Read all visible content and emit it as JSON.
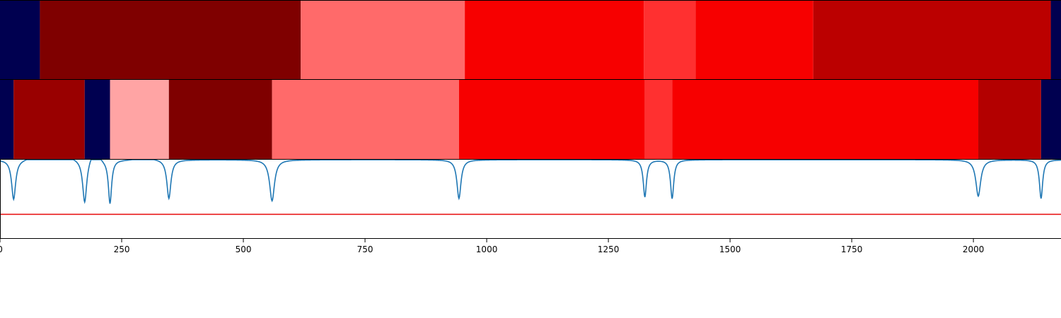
{
  "chart_data": {
    "type": "heatmap",
    "title": "",
    "xlabel": "",
    "ylabel": "",
    "xlim": [
      0,
      2180
    ],
    "xticks": [
      0,
      250,
      500,
      750,
      1000,
      1250,
      1500,
      1750,
      2000
    ],
    "xtick_labels": [
      "0",
      "250",
      "500",
      "750",
      "1000",
      "1250",
      "1500",
      "1750",
      "2000"
    ],
    "segment_rows": [
      {
        "name": "",
        "segments": [
          {
            "start": 0,
            "end": 82,
            "color": "#000050"
          },
          {
            "start": 82,
            "end": 618,
            "color": "#7f0000"
          },
          {
            "start": 618,
            "end": 955,
            "color": "#ff6a6a"
          },
          {
            "start": 955,
            "end": 1323,
            "color": "#f70000"
          },
          {
            "start": 1323,
            "end": 1429,
            "color": "#ff3030"
          },
          {
            "start": 1429,
            "end": 1671,
            "color": "#f70000"
          },
          {
            "start": 1671,
            "end": 2159,
            "color": "#bb0000"
          },
          {
            "start": 2159,
            "end": 2180,
            "color": "#000050"
          }
        ]
      },
      {
        "name": "",
        "segments": [
          {
            "start": 0,
            "end": 28,
            "color": "#000050"
          },
          {
            "start": 28,
            "end": 174,
            "color": "#990000"
          },
          {
            "start": 174,
            "end": 226,
            "color": "#000050"
          },
          {
            "start": 226,
            "end": 347,
            "color": "#ffa4a4"
          },
          {
            "start": 347,
            "end": 559,
            "color": "#7f0000"
          },
          {
            "start": 559,
            "end": 943,
            "color": "#ff6a6a"
          },
          {
            "start": 943,
            "end": 1325,
            "color": "#f70000"
          },
          {
            "start": 1325,
            "end": 1381,
            "color": "#ff3030"
          },
          {
            "start": 1381,
            "end": 2010,
            "color": "#f70000"
          },
          {
            "start": 2010,
            "end": 2139,
            "color": "#b30000"
          },
          {
            "start": 2139,
            "end": 2180,
            "color": "#000050"
          }
        ]
      }
    ],
    "curve": {
      "name": "",
      "color": "#1f77b4",
      "ylim": [
        0,
        1
      ],
      "baseline": 1.0,
      "dips": [
        {
          "x": 28,
          "depth": 0.5,
          "width": 5
        },
        {
          "x": 174,
          "depth": 0.54,
          "width": 5
        },
        {
          "x": 226,
          "depth": 0.55,
          "width": 4
        },
        {
          "x": 347,
          "depth": 0.49,
          "width": 5
        },
        {
          "x": 559,
          "depth": 0.52,
          "width": 6
        },
        {
          "x": 943,
          "depth": 0.49,
          "width": 5
        },
        {
          "x": 1325,
          "depth": 0.47,
          "width": 4
        },
        {
          "x": 1381,
          "depth": 0.49,
          "width": 4
        },
        {
          "x": 2010,
          "depth": 0.46,
          "width": 6
        },
        {
          "x": 2139,
          "depth": 0.49,
          "width": 4
        }
      ],
      "bumps": [
        {
          "x": 72,
          "height": -0.04,
          "width": 20
        },
        {
          "x": 135,
          "height": -0.04,
          "width": 25
        },
        {
          "x": 195,
          "height": -0.12,
          "width": 12
        },
        {
          "x": 300,
          "height": -0.02,
          "width": 30
        }
      ]
    },
    "threshold": {
      "y": 0.31,
      "color": "#e8191b"
    },
    "grid": false,
    "legend": "none"
  }
}
